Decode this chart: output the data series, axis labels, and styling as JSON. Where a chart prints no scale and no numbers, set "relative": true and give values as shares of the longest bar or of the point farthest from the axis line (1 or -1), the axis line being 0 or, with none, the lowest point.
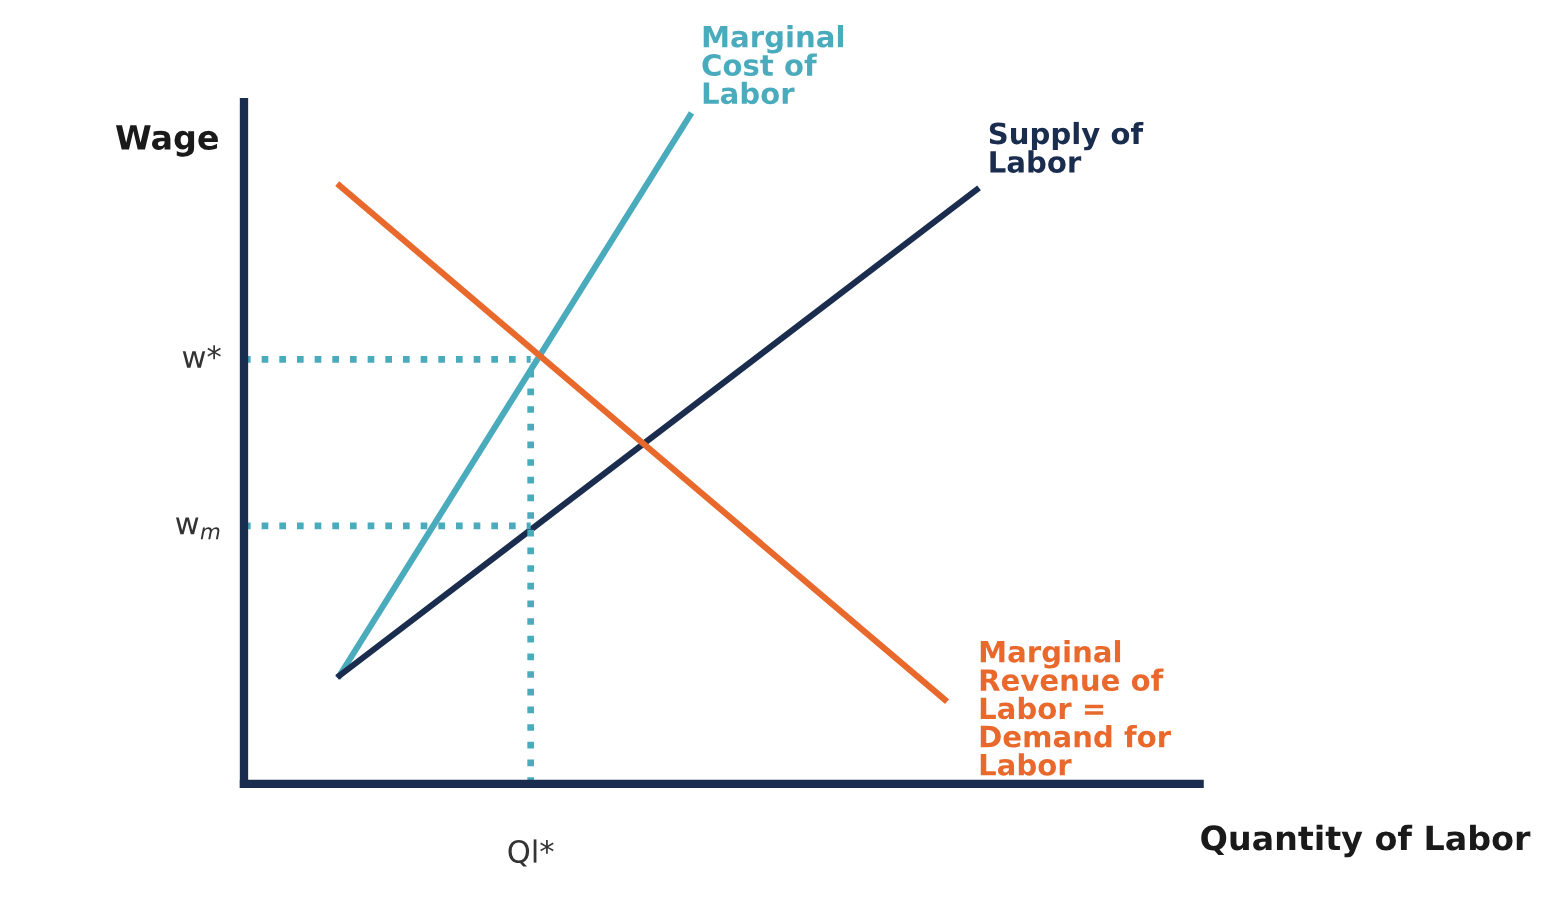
{
  "chart_data": {
    "type": "line",
    "relative": true,
    "xlabel": "Quantity of Labor",
    "ylabel": "Wage",
    "marker": "none",
    "categories": [
      null,
      null,
      null,
      null,
      null,
      null,
      null,
      null,
      null,
      null,
      null,
      null,
      null,
      null,
      null,
      null,
      null,
      null,
      null,
      null,
      null,
      null,
      null,
      null,
      null,
      null,
      null,
      null,
      null,
      null,
      null
    ],
    "series": [
      {
        "name": "Marginal\nCost of\nLabor",
        "color": "#4aabbd",
        "values": [
          null,
          null,
          null,
          0.162,
          null,
          null,
          null,
          null,
          null,
          null,
          null,
          null,
          null,
          null,
          1.0,
          null,
          null,
          null,
          null,
          null,
          null,
          null,
          null,
          null,
          null,
          null,
          null,
          null,
          null,
          null,
          null
        ]
      },
      {
        "name": "Supply of\nLabor",
        "color": "#1b2d4f",
        "values": [
          null,
          null,
          null,
          0.162,
          null,
          null,
          null,
          null,
          null,
          null,
          null,
          null,
          null,
          null,
          null,
          null,
          null,
          null,
          null,
          null,
          null,
          null,
          null,
          0.889,
          null,
          null,
          null,
          null,
          null,
          null,
          null
        ]
      },
      {
        "name": "Marginal\nRevenue of\nLabor =\nDemand for\nLabor",
        "color": "#e8692b",
        "values": [
          null,
          null,
          null,
          0.895,
          null,
          null,
          null,
          null,
          null,
          null,
          null,
          null,
          null,
          null,
          null,
          null,
          null,
          null,
          null,
          null,
          null,
          null,
          0.126,
          null,
          null,
          null,
          null,
          null,
          null,
          null,
          null
        ]
      },
      {
        "color": "#4aabbd",
        "line_style": "dotted",
        "values": [
          0.635,
          null,
          null,
          null,
          null,
          null,
          null,
          null,
          null,
          0.635,
          null,
          null,
          null,
          null,
          null,
          null,
          null,
          null,
          null,
          null,
          null,
          null,
          null,
          null,
          null,
          null,
          null,
          null,
          null,
          null,
          null
        ]
      },
      {
        "color": "#4aabbd",
        "line_style": "dotted",
        "values": [
          0.386,
          null,
          null,
          null,
          null,
          null,
          null,
          null,
          null,
          0.386,
          null,
          null,
          null,
          null,
          null,
          null,
          null,
          null,
          null,
          null,
          null,
          null,
          null,
          null,
          null,
          null,
          null,
          null,
          null,
          null,
          null
        ]
      }
    ],
    "annotations": [
      "w*",
      "w$_{m}$",
      "Ql*"
    ]
  }
}
